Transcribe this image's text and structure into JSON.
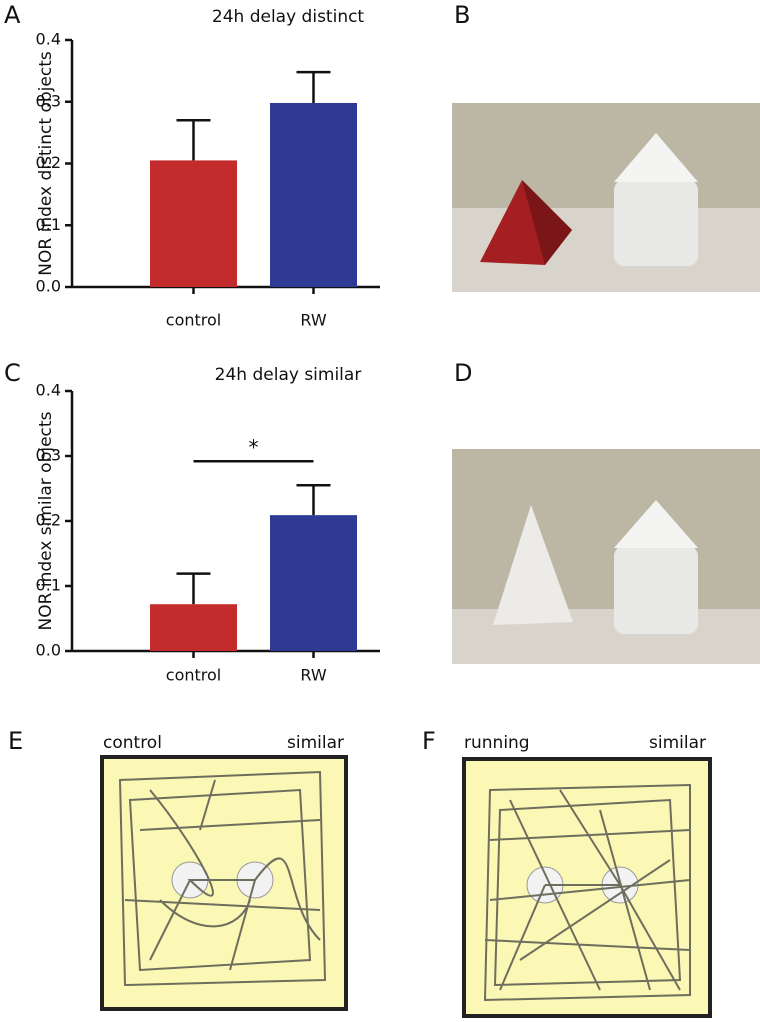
{
  "chart_data": [
    {
      "type": "bar",
      "panel": "A",
      "title": "24h delay distinct",
      "y_label": "NOR index distinct objects",
      "categories": [
        "control",
        "RW"
      ],
      "values": [
        0.205,
        0.298
      ],
      "errors": [
        0.065,
        0.05
      ],
      "colors": [
        "#c42b2c",
        "#2e3a94"
      ],
      "ylim": [
        0,
        0.4
      ],
      "yticks": [
        {
          "value": 0,
          "label": "0.0"
        },
        0.1,
        0.2,
        0.3,
        0.4
      ]
    },
    {
      "type": "bar",
      "panel": "C",
      "title": "24h delay similar",
      "y_label": "NOR index similar objects",
      "categories": [
        "control",
        "RW"
      ],
      "values": [
        0.072,
        0.209
      ],
      "errors": [
        0.047,
        0.046
      ],
      "colors": [
        "#c42b2c",
        "#2e3a94"
      ],
      "ylim": [
        0,
        0.4
      ],
      "yticks": [
        {
          "value": 0,
          "label": "0.0"
        },
        0.1,
        0.2,
        0.3,
        0.4
      ],
      "significance": {
        "label": "*",
        "y": 0.292
      }
    }
  ],
  "photo_panels": [
    "B",
    "D"
  ],
  "tracks": [
    {
      "panel": "E",
      "group": "control",
      "condition": "similar"
    },
    {
      "panel": "F",
      "group": "running",
      "condition": "similar"
    }
  ]
}
